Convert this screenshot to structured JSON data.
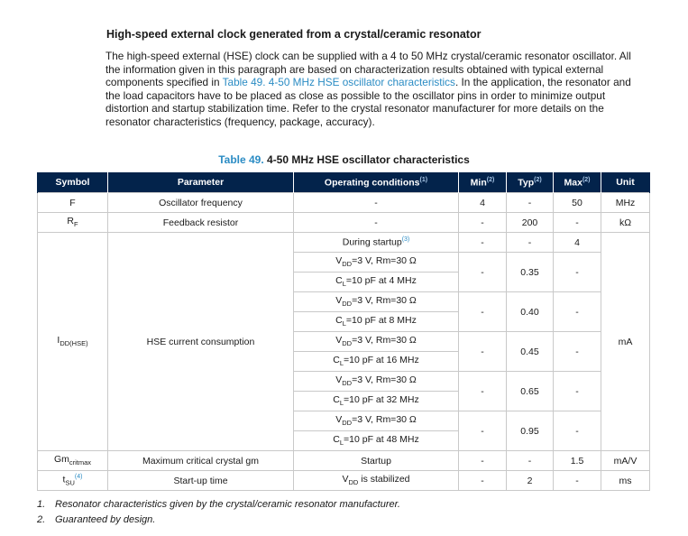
{
  "heading": "High-speed external clock generated from a crystal/ceramic resonator",
  "paragraph": {
    "text_before": "The high-speed external (HSE) clock can be supplied with a 4 to 50 MHz crystal/ceramic resonator oscillator. All the information given in this paragraph are based on characterization results obtained with typical external components specified in ",
    "link_text": "Table 49. 4-50 MHz HSE oscillator characteristics",
    "text_after": ". In the application, the resonator and the load capacitors have to be placed as close as possible to the oscillator pins in order to minimize output distortion and startup stabilization time. Refer to the crystal resonator manufacturer for more details on the resonator characteristics (frequency, package, accuracy)."
  },
  "table_caption": {
    "number": "Table 49.",
    "title": "4-50 MHz HSE oscillator characteristics"
  },
  "table": {
    "headers": {
      "symbol": "Symbol",
      "parameter": "Parameter",
      "conditions": "Operating conditions",
      "conditions_ref": "(1)",
      "min": "Min",
      "min_ref": "(2)",
      "typ": "Typ",
      "typ_ref": "(2)",
      "max": "Max",
      "max_ref": "(2)",
      "unit": "Unit"
    },
    "row_f": {
      "symbol": "F",
      "parameter": "Oscillator frequency",
      "conditions": "-",
      "min": "4",
      "typ": "-",
      "max": "50",
      "unit": "MHz"
    },
    "row_rf": {
      "symbol_main": "R",
      "symbol_sub": "F",
      "parameter": "Feedback resistor",
      "conditions": "-",
      "min": "-",
      "typ": "200",
      "max": "-",
      "unit": "kΩ"
    },
    "idd": {
      "symbol_main": "I",
      "symbol_sub": "DD(HSE)",
      "parameter": "HSE current consumption",
      "unit": "mA",
      "startup": {
        "condition": "During startup",
        "condition_ref": "(3)",
        "min": "-",
        "typ": "-",
        "max": "4"
      },
      "vdd_label": "V",
      "vdd_sub": "DD",
      "cl_label": "C",
      "cl_sub": "L",
      "groups": [
        {
          "vdd_rest": "=3 V, Rm=30 Ω",
          "cl_rest": "=10 pF at 4 MHz",
          "min": "-",
          "typ": "0.35",
          "max": "-"
        },
        {
          "vdd_rest": "=3 V, Rm=30 Ω",
          "cl_rest": "=10 pF at 8 MHz",
          "min": "-",
          "typ": "0.40",
          "max": "-"
        },
        {
          "vdd_rest": "=3 V, Rm=30 Ω",
          "cl_rest": "=10 pF at 16 MHz",
          "min": "-",
          "typ": "0.45",
          "max": "-"
        },
        {
          "vdd_rest": "=3 V, Rm=30 Ω",
          "cl_rest": "=10 pF at 32 MHz",
          "min": "-",
          "typ": "0.65",
          "max": "-"
        },
        {
          "vdd_rest": "=3 V, Rm=30 Ω",
          "cl_rest": "=10 pF at 48 MHz",
          "min": "-",
          "typ": "0.95",
          "max": "-"
        }
      ]
    },
    "row_gm": {
      "symbol_main": "Gm",
      "symbol_sub": "critmax",
      "parameter": "Maximum critical crystal gm",
      "conditions": "Startup",
      "min": "-",
      "typ": "-",
      "max": "1.5",
      "unit": "mA/V"
    },
    "row_tsu": {
      "symbol_main": "t",
      "symbol_sub": "SU",
      "symbol_ref": "(4)",
      "parameter": "Start-up time",
      "cond_main": "V",
      "cond_sub": "DD",
      "cond_rest": " is stabilized",
      "min": "-",
      "typ": "2",
      "max": "-",
      "unit": "ms"
    }
  },
  "notes": [
    {
      "num": "1.",
      "text": "Resonator characteristics given by the crystal/ceramic resonator manufacturer."
    },
    {
      "num": "2.",
      "text": "Guaranteed by design."
    }
  ],
  "colors": {
    "header_bg": "#03234b",
    "link": "#2b8cc4",
    "border": "#c9c9c9"
  }
}
